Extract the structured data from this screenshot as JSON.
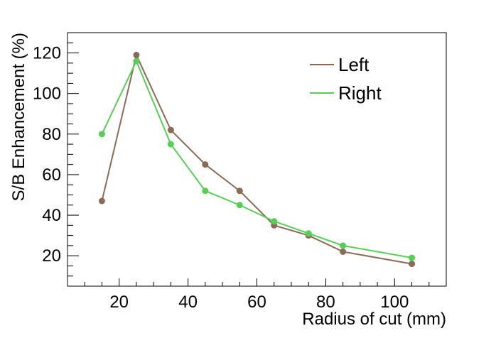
{
  "chart_data": {
    "type": "line",
    "xlabel": "Radius of cut (mm)",
    "ylabel": "S/B Enhancement (%)",
    "xlim": [
      5,
      115
    ],
    "ylim": [
      5,
      130
    ],
    "x_ticks": [
      "20",
      "40",
      "60",
      "80",
      "100"
    ],
    "y_ticks": [
      "20",
      "40",
      "60",
      "80",
      "100",
      "120"
    ],
    "grid": false,
    "legend_position": "top-right",
    "x": [
      15,
      25,
      35,
      45,
      55,
      65,
      75,
      85,
      105
    ],
    "series": [
      {
        "name": "Left",
        "color": "#8b6a58",
        "values": [
          47,
          119,
          82,
          65,
          52,
          35,
          30,
          22,
          16
        ]
      },
      {
        "name": "Right",
        "color": "#55d055",
        "values": [
          80,
          116,
          75,
          52,
          45,
          37,
          31,
          25,
          19
        ]
      }
    ]
  }
}
